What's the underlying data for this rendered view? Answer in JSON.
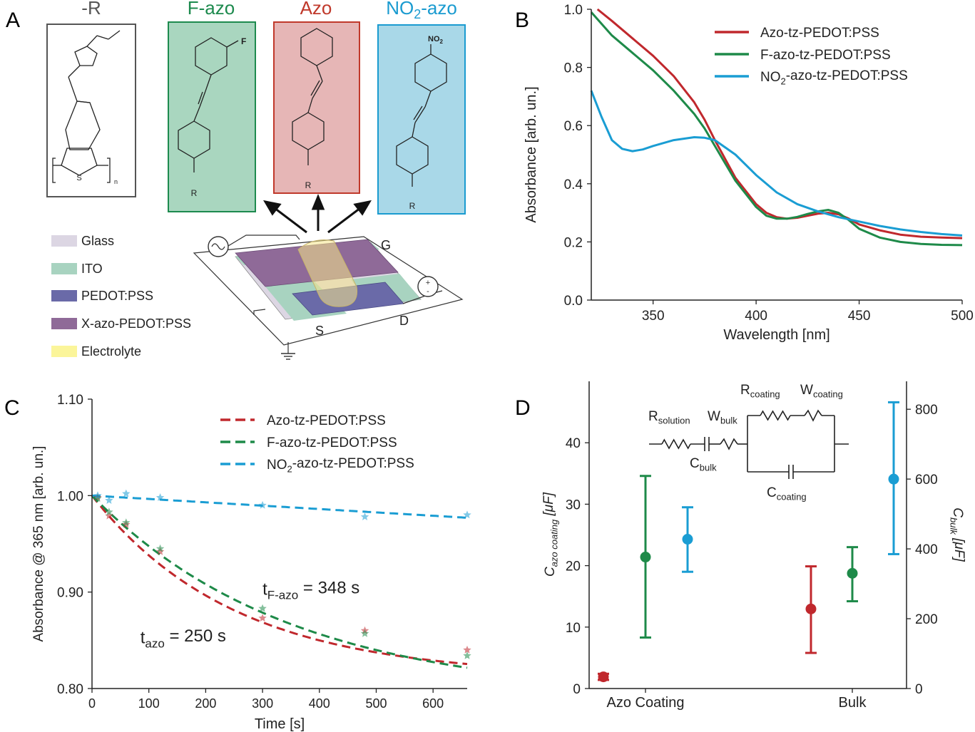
{
  "panelA": {
    "label": "A",
    "structures": [
      {
        "title": "-R",
        "color": "#555555",
        "bg": "#ffffff"
      },
      {
        "title": "F-azo",
        "color": "#1d8a4e",
        "bg": "#a9d6bf",
        "sub": "F",
        "r": "R"
      },
      {
        "title": "Azo",
        "color": "#c0392b",
        "bg": "#e6b6b6",
        "r": "R"
      },
      {
        "title": "NO2-azo",
        "color": "#1a9bd0",
        "bg": "#a9d8e8",
        "sub": "NO2",
        "r": "R"
      }
    ],
    "polymer": {
      "s": "S",
      "n": "n"
    },
    "legend": [
      {
        "label": "Glass",
        "color": "#dcd6e3"
      },
      {
        "label": "ITO",
        "color": "#a8d3c0"
      },
      {
        "label": "PEDOT:PSS",
        "color": "#6a6aa8"
      },
      {
        "label": "X-azo-PEDOT:PSS",
        "color": "#8f6a98"
      },
      {
        "label": "Electrolyte",
        "color": "#fbf59a"
      }
    ],
    "device": {
      "g": "G",
      "s": "S",
      "d": "D"
    }
  },
  "colors": {
    "azo": "#c0282d",
    "fazo": "#1e8a49",
    "no2": "#1a9dd3"
  },
  "chart_data": [
    {
      "panel": "B",
      "type": "line",
      "xlabel": "Wavelength [nm]",
      "ylabel": "Absorbance [arb. un.]",
      "xlim": [
        320,
        500
      ],
      "ylim": [
        0,
        1.0
      ],
      "xticks": [
        350,
        400,
        450,
        500
      ],
      "yticks": [
        0.0,
        0.2,
        0.4,
        0.6,
        0.8,
        1.0
      ],
      "ytick_labels": [
        "0.0",
        "0.2",
        "0.4",
        "0.6",
        "0.8",
        "1.0"
      ],
      "legend_position": "top-right",
      "series": [
        {
          "name": "Azo-tz-PEDOT:PSS",
          "color": "#c0282d",
          "x": [
            323,
            330,
            340,
            350,
            360,
            370,
            375,
            380,
            390,
            400,
            405,
            410,
            415,
            420,
            425,
            430,
            435,
            440,
            445,
            450,
            460,
            470,
            480,
            490,
            500
          ],
          "y": [
            1.0,
            0.96,
            0.9,
            0.84,
            0.77,
            0.68,
            0.62,
            0.55,
            0.42,
            0.33,
            0.3,
            0.285,
            0.28,
            0.283,
            0.29,
            0.297,
            0.3,
            0.295,
            0.28,
            0.26,
            0.24,
            0.225,
            0.218,
            0.215,
            0.213
          ]
        },
        {
          "name": "F-azo-tz-PEDOT:PSS",
          "color": "#1e8a49",
          "x": [
            320,
            330,
            340,
            350,
            360,
            370,
            375,
            380,
            390,
            400,
            405,
            410,
            415,
            420,
            425,
            430,
            435,
            440,
            445,
            450,
            460,
            470,
            480,
            490,
            500
          ],
          "y": [
            0.99,
            0.91,
            0.85,
            0.79,
            0.72,
            0.64,
            0.59,
            0.53,
            0.41,
            0.32,
            0.29,
            0.28,
            0.28,
            0.286,
            0.296,
            0.305,
            0.31,
            0.3,
            0.275,
            0.245,
            0.215,
            0.2,
            0.193,
            0.19,
            0.189
          ]
        },
        {
          "name": "NO2-azo-tz-PEDOT:PSS",
          "color": "#1a9dd3",
          "x": [
            320,
            325,
            330,
            335,
            340,
            345,
            350,
            360,
            370,
            375,
            380,
            390,
            400,
            410,
            420,
            430,
            440,
            450,
            460,
            470,
            480,
            490,
            500
          ],
          "y": [
            0.72,
            0.63,
            0.55,
            0.52,
            0.512,
            0.518,
            0.53,
            0.55,
            0.56,
            0.558,
            0.55,
            0.5,
            0.43,
            0.37,
            0.33,
            0.305,
            0.285,
            0.27,
            0.255,
            0.243,
            0.234,
            0.227,
            0.222
          ]
        }
      ]
    },
    {
      "panel": "C",
      "type": "scatter",
      "xlabel": "Time [s]",
      "ylabel": "Absorbance @ 365 nm [arb. un.]",
      "xlim": [
        0,
        660
      ],
      "ylim": [
        0.8,
        1.1
      ],
      "xticks": [
        0,
        100,
        200,
        300,
        400,
        500,
        600
      ],
      "yticks": [
        0.8,
        0.9,
        1.0,
        1.1
      ],
      "ytick_labels": [
        "0.80",
        "0.90",
        "1.00",
        "1.10"
      ],
      "legend_position": "top-right",
      "annotations": [
        {
          "base": "t",
          "sub": "F-azo",
          "rest": " = 348 s",
          "x": 300,
          "y": 0.897
        },
        {
          "base": "t",
          "sub": "azo",
          "rest": " = 250 s",
          "x": 85,
          "y": 0.847
        }
      ],
      "series": [
        {
          "name": "Azo-tz-PEDOT:PSS",
          "color": "#c0282d",
          "fit": {
            "type": "exp",
            "y0": 1.0,
            "yinf": 0.812,
            "tau": 250
          },
          "points_x": [
            10,
            30,
            60,
            120,
            300,
            480,
            660
          ],
          "points_y": [
            0.998,
            0.979,
            0.97,
            0.942,
            0.873,
            0.86,
            0.84
          ]
        },
        {
          "name": "F-azo-tz-PEDOT:PSS",
          "color": "#1e8a49",
          "fit": {
            "type": "exp",
            "y0": 1.0,
            "yinf": 0.79,
            "tau": 348
          },
          "points_x": [
            10,
            30,
            60,
            120,
            300,
            480,
            660
          ],
          "points_y": [
            0.997,
            0.983,
            0.972,
            0.945,
            0.883,
            0.857,
            0.834
          ]
        },
        {
          "name": "NO2-azo-tz-PEDOT:PSS",
          "color": "#1a9dd3",
          "fit": {
            "type": "linear",
            "y0": 1.0,
            "slope": -3.48e-05
          },
          "points_x": [
            10,
            30,
            60,
            120,
            300,
            480,
            660
          ],
          "points_y": [
            1.0,
            0.995,
            1.002,
            0.998,
            0.99,
            0.978,
            0.98
          ]
        }
      ]
    },
    {
      "panel": "D",
      "type": "scatter",
      "categories": [
        "Azo Coating",
        "Bulk"
      ],
      "ylabel_left": {
        "base": "C",
        "sub": "azo coating",
        "rest": " [μF]"
      },
      "ylabel_right": {
        "base": "C",
        "sub": "bulk",
        "rest": " [μF]"
      },
      "ylim_left": [
        0,
        50
      ],
      "ylim_right": [
        0,
        880
      ],
      "yticks_left": [
        0,
        10,
        20,
        30,
        40
      ],
      "yticks_right": [
        0,
        200,
        400,
        600,
        800
      ],
      "series": [
        {
          "name": "Azo",
          "color": "#c0282d",
          "coating": {
            "value": 1.9,
            "low": 1.4,
            "high": 2.4
          },
          "bulk": {
            "value": 228,
            "low": 102,
            "high": 350
          }
        },
        {
          "name": "F-azo",
          "color": "#1e8a49",
          "coating": {
            "value": 21.4,
            "low": 8.3,
            "high": 34.6
          },
          "bulk": {
            "value": 330,
            "low": 250,
            "high": 405
          }
        },
        {
          "name": "NO2-azo",
          "color": "#1a9dd3",
          "coating": {
            "value": 24.3,
            "low": 19.0,
            "high": 29.5
          },
          "bulk": {
            "value": 600,
            "low": 385,
            "high": 820
          }
        }
      ],
      "circuit": {
        "r_solution": {
          "base": "R",
          "sub": "solution"
        },
        "w_bulk": {
          "base": "W",
          "sub": "bulk"
        },
        "c_bulk": {
          "base": "C",
          "sub": "bulk"
        },
        "r_coating": {
          "base": "R",
          "sub": "coating"
        },
        "w_coating": {
          "base": "W",
          "sub": "coating"
        },
        "c_coating": {
          "base": "C",
          "sub": "coating"
        }
      }
    }
  ]
}
